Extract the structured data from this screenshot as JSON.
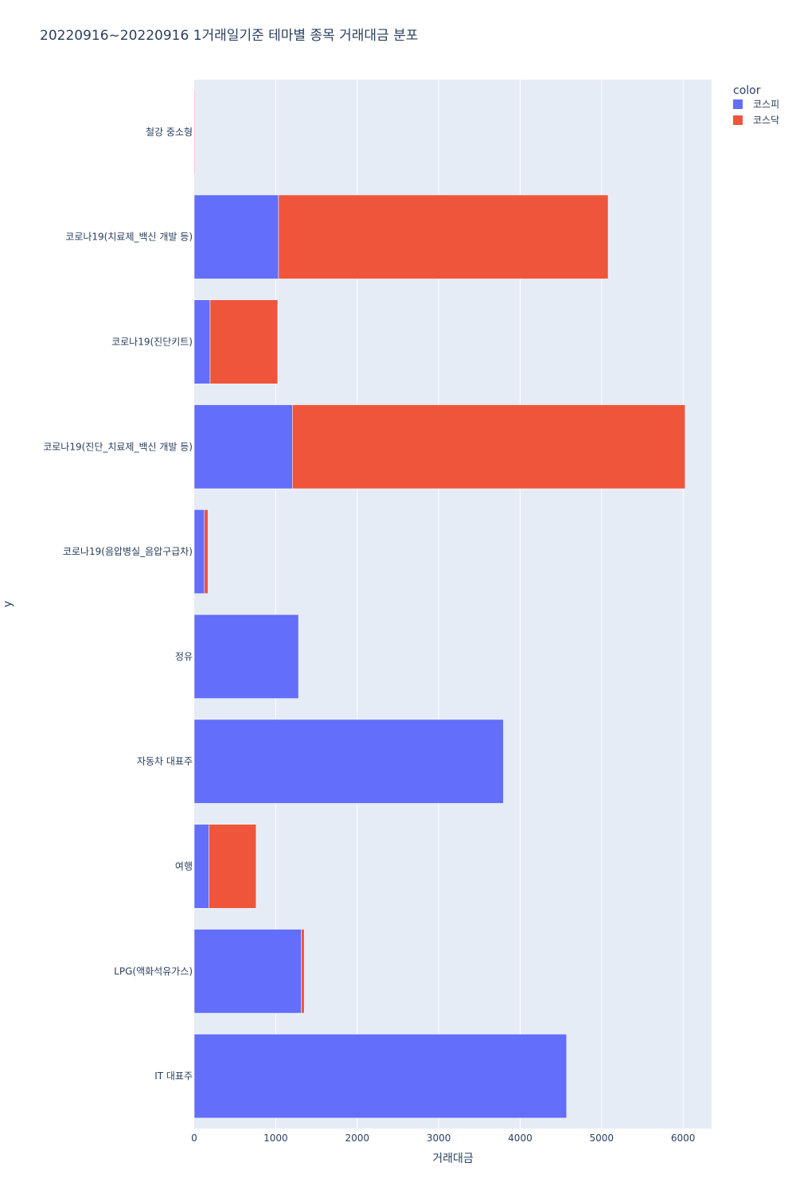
{
  "chart_data": {
    "type": "bar",
    "orientation": "horizontal",
    "barmode": "stack",
    "title": "20220916~20220916 1거래일기준 테마별 종목 거래대금 분포",
    "xlabel": "거래대금",
    "ylabel": "y",
    "xlim": [
      0,
      6350
    ],
    "xticks": [
      0,
      1000,
      2000,
      3000,
      4000,
      5000,
      6000
    ],
    "xtick_labels": [
      "0",
      "1000",
      "2000",
      "3000",
      "4000",
      "5000",
      "6000"
    ],
    "grid": true,
    "legend_position": "top-right",
    "legend_title": "color",
    "categories": [
      "철강 중소형",
      "코로나19(치료제_백신 개발 등)",
      "코로나19(진단키트)",
      "코로나19(진단_치료제_백신 개발 등)",
      "코로나19(음압병실_음압구급차)",
      "정유",
      "자동차 대표주",
      "여행",
      "LPG(액화석유가스)",
      "IT 대표주"
    ],
    "series": [
      {
        "name": "코스피",
        "color": "#636efa",
        "values": [
          0,
          1035,
          195,
          1205,
          125,
          1280,
          3795,
          180,
          1315,
          4570
        ]
      },
      {
        "name": "코스닥",
        "color": "#ef553b",
        "values": [
          8,
          4045,
          830,
          4820,
          45,
          0,
          0,
          580,
          35,
          0
        ]
      }
    ]
  }
}
